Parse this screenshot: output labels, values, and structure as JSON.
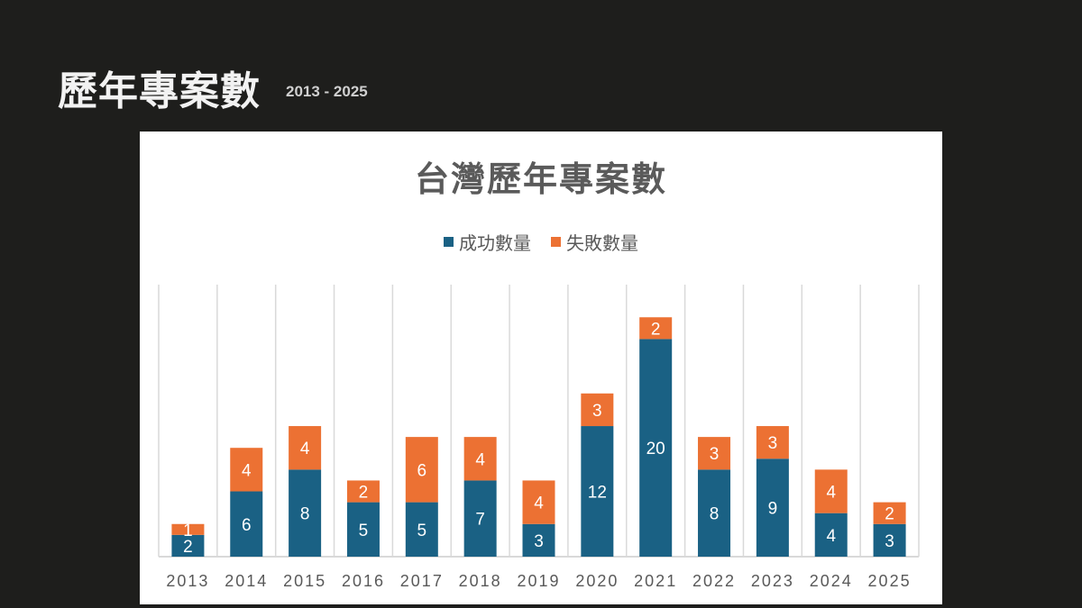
{
  "slide": {
    "title": "歷年專案數",
    "subtitle": "2013 - 2025"
  },
  "colors": {
    "success": "#1a6184",
    "failure": "#ec7133",
    "grid": "#d9d9d9"
  },
  "chart_data": {
    "type": "bar",
    "stacked": true,
    "title": "台灣歷年專案數",
    "categories": [
      "2013",
      "2014",
      "2015",
      "2016",
      "2017",
      "2018",
      "2019",
      "2020",
      "2021",
      "2022",
      "2023",
      "2024",
      "2025"
    ],
    "series": [
      {
        "name": "成功數量",
        "values": [
          2,
          6,
          8,
          5,
          5,
          7,
          3,
          12,
          20,
          8,
          9,
          4,
          3
        ]
      },
      {
        "name": "失敗數量",
        "values": [
          1,
          4,
          4,
          2,
          6,
          4,
          4,
          3,
          2,
          3,
          3,
          4,
          2
        ]
      }
    ],
    "ylim": [
      0,
      25
    ],
    "legend": "top",
    "grid": "vertical"
  }
}
